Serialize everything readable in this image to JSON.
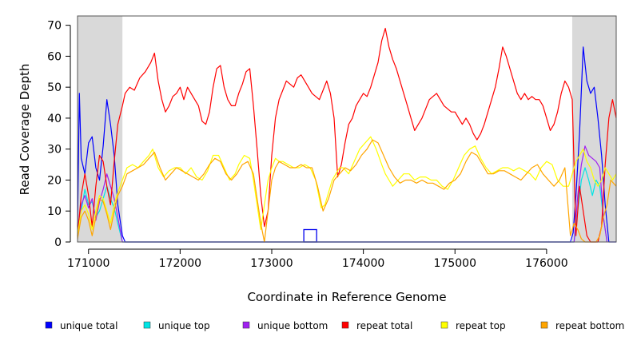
{
  "chart_data": {
    "type": "line",
    "title": "",
    "xlabel": "Coordinate in Reference Genome",
    "ylabel": "Read Coverage Depth",
    "xlim": [
      170880,
      176760
    ],
    "ylim": [
      0,
      73
    ],
    "x_ticks": [
      171000,
      172000,
      173000,
      174000,
      175000,
      176000
    ],
    "x_tick_labels": [
      "171000",
      "172000",
      "173000",
      "174000",
      "175000",
      "176000"
    ],
    "y_ticks": [
      0,
      10,
      20,
      30,
      40,
      50,
      60,
      70
    ],
    "y_tick_labels": [
      "0",
      "10",
      "20",
      "30",
      "40",
      "50",
      "60",
      "70"
    ],
    "shaded_regions": [
      {
        "x": [
          170880,
          171370
        ],
        "color": "#d9d9d9"
      },
      {
        "x": [
          176280,
          176760
        ],
        "color": "#d9d9d9"
      }
    ],
    "boxes": [
      {
        "x": [
          173350,
          173490
        ],
        "y": [
          0,
          4
        ],
        "color": "#0000ee"
      }
    ],
    "legend_position": "bottom",
    "series": [
      {
        "name": "unique total",
        "color": "#0000ff",
        "x": [
          170880,
          170900,
          170920,
          170960,
          171000,
          171040,
          171080,
          171120,
          171160,
          171200,
          171240,
          171280,
          171320,
          171370,
          171400,
          176260,
          176290,
          176320,
          176360,
          176400,
          176440,
          176480,
          176520,
          176560,
          176600,
          176640,
          176680,
          176720,
          176760
        ],
        "y": [
          5,
          48,
          27,
          22,
          32,
          34,
          24,
          20,
          31,
          46,
          38,
          28,
          12,
          2,
          0,
          0,
          3,
          15,
          35,
          63,
          52,
          48,
          50,
          40,
          28,
          12,
          0,
          0,
          0
        ]
      },
      {
        "name": "unique top",
        "color": "#00e5e5",
        "x": [
          170880,
          170920,
          170960,
          171000,
          171040,
          171080,
          171120,
          171160,
          171200,
          171240,
          171280,
          171320,
          171370,
          176300,
          176340,
          176380,
          176420,
          176460,
          176500,
          176540,
          176580,
          176620,
          176660
        ],
        "y": [
          5,
          10,
          17,
          12,
          13,
          8,
          10,
          14,
          18,
          14,
          11,
          6,
          0,
          0,
          10,
          20,
          24,
          20,
          15,
          20,
          18,
          8,
          0
        ],
        "legend_label": "unique top"
      },
      {
        "name": "unique bottom",
        "color": "#a020f0",
        "x": [
          170880,
          170920,
          170960,
          171000,
          171040,
          171080,
          171120,
          171160,
          171200,
          171240,
          171280,
          171320,
          171370,
          176300,
          176340,
          176380,
          176420,
          176460,
          176500,
          176540,
          176580,
          176620,
          176660
        ],
        "y": [
          4,
          12,
          15,
          11,
          14,
          7,
          13,
          17,
          22,
          18,
          14,
          8,
          0,
          0,
          15,
          25,
          31,
          28,
          27,
          26,
          24,
          8,
          0
        ]
      },
      {
        "name": "repeat total",
        "color": "#ff0000",
        "x": [
          170880,
          170920,
          170960,
          171000,
          171040,
          171080,
          171120,
          171160,
          171200,
          171240,
          171280,
          171320,
          171370,
          171400,
          171450,
          171500,
          171560,
          171620,
          171680,
          171720,
          171760,
          171800,
          171840,
          171880,
          171920,
          171960,
          172000,
          172040,
          172080,
          172120,
          172160,
          172200,
          172240,
          172280,
          172320,
          172360,
          172400,
          172440,
          172480,
          172520,
          172560,
          172600,
          172640,
          172680,
          172720,
          172760,
          172800,
          172840,
          172880,
          172920,
          172960,
          173000,
          173040,
          173080,
          173120,
          173160,
          173200,
          173240,
          173280,
          173320,
          173360,
          173400,
          173440,
          173480,
          173520,
          173560,
          173600,
          173640,
          173680,
          173720,
          173760,
          173800,
          173840,
          173880,
          173920,
          173960,
          174000,
          174040,
          174080,
          174120,
          174160,
          174200,
          174240,
          174280,
          174320,
          174360,
          174400,
          174440,
          174480,
          174520,
          174560,
          174600,
          174640,
          174680,
          174720,
          174760,
          174800,
          174840,
          174880,
          174920,
          174960,
          175000,
          175040,
          175080,
          175120,
          175160,
          175200,
          175240,
          175280,
          175320,
          175360,
          175400,
          175440,
          175480,
          175520,
          175560,
          175600,
          175640,
          175680,
          175720,
          175760,
          175800,
          175840,
          175880,
          175920,
          175960,
          176000,
          176040,
          176080,
          176120,
          176160,
          176200,
          176240,
          176280,
          176320,
          176360,
          176400,
          176440,
          176480,
          176520,
          176560,
          176600,
          176640,
          176680,
          176720,
          176760
        ],
        "y": [
          2,
          15,
          22,
          15,
          5,
          18,
          28,
          26,
          18,
          12,
          26,
          38,
          44,
          48,
          50,
          49,
          53,
          55,
          58,
          61,
          52,
          46,
          42,
          44,
          47,
          48,
          50,
          46,
          50,
          48,
          46,
          44,
          39,
          38,
          42,
          50,
          56,
          57,
          50,
          46,
          44,
          44,
          48,
          51,
          55,
          56,
          44,
          30,
          15,
          5,
          10,
          28,
          40,
          46,
          49,
          52,
          51,
          50,
          53,
          54,
          52,
          50,
          48,
          47,
          46,
          49,
          52,
          48,
          40,
          21,
          25,
          32,
          38,
          40,
          44,
          46,
          48,
          47,
          50,
          54,
          58,
          65,
          69,
          63,
          59,
          56,
          52,
          48,
          44,
          40,
          36,
          38,
          40,
          43,
          46,
          47,
          48,
          46,
          44,
          43,
          42,
          42,
          40,
          38,
          40,
          38,
          35,
          33,
          35,
          38,
          42,
          46,
          50,
          56,
          63,
          60,
          56,
          52,
          48,
          46,
          48,
          46,
          47,
          46,
          46,
          44,
          40,
          36,
          38,
          42,
          48,
          52,
          50,
          46,
          2,
          18,
          10,
          2,
          0,
          0,
          0,
          5,
          25,
          40,
          46,
          40
        ]
      },
      {
        "name": "repeat top",
        "color": "#ffff00",
        "x": [
          170880,
          170920,
          170960,
          171000,
          171040,
          171080,
          171120,
          171160,
          171200,
          171240,
          171280,
          171320,
          171370,
          171420,
          171480,
          171540,
          171600,
          171660,
          171700,
          171760,
          171820,
          171880,
          171940,
          172000,
          172060,
          172120,
          172180,
          172240,
          172300,
          172360,
          172420,
          172480,
          172540,
          172600,
          172640,
          172700,
          172760,
          172800,
          172840,
          172880,
          172920,
          172960,
          173000,
          173040,
          173080,
          173120,
          173180,
          173240,
          173300,
          173360,
          173420,
          173480,
          173540,
          173580,
          173620,
          173660,
          173700,
          173740,
          173780,
          173840,
          173900,
          173960,
          174020,
          174080,
          174140,
          174200,
          174240,
          174280,
          174320,
          174380,
          174440,
          174500,
          174560,
          174620,
          174680,
          174740,
          174800,
          174860,
          174920,
          174980,
          175040,
          175100,
          175160,
          175220,
          175280,
          175340,
          175400,
          175460,
          175520,
          175580,
          175640,
          175700,
          175760,
          175820,
          175880,
          175940,
          176000,
          176060,
          176120,
          176180,
          176240,
          176280,
          176320,
          176360,
          176400,
          176440,
          176480,
          176520,
          176560,
          176600,
          176640,
          176680,
          176720,
          176760
        ],
        "y": [
          2,
          10,
          12,
          9,
          4,
          10,
          15,
          14,
          10,
          6,
          12,
          16,
          20,
          24,
          25,
          24,
          26,
          28,
          30,
          24,
          21,
          23,
          24,
          24,
          22,
          24,
          21,
          20,
          23,
          28,
          28,
          24,
          20,
          22,
          25,
          28,
          27,
          20,
          12,
          4,
          12,
          20,
          24,
          27,
          26,
          26,
          25,
          24,
          24,
          25,
          24,
          20,
          11,
          12,
          16,
          20,
          22,
          24,
          24,
          22,
          26,
          30,
          32,
          34,
          30,
          25,
          22,
          20,
          18,
          20,
          22,
          22,
          20,
          21,
          21,
          20,
          20,
          18,
          17,
          20,
          24,
          28,
          30,
          31,
          27,
          24,
          22,
          23,
          24,
          24,
          23,
          24,
          23,
          22,
          20,
          24,
          26,
          25,
          20,
          18,
          18,
          22,
          26,
          28,
          30,
          26,
          24,
          20,
          18,
          20,
          24,
          22,
          20,
          22
        ]
      },
      {
        "name": "repeat bottom",
        "color": "#ffa500",
        "x": [
          170880,
          170920,
          170960,
          171000,
          171040,
          171080,
          171120,
          171160,
          171200,
          171240,
          171280,
          171320,
          171370,
          171420,
          171480,
          171540,
          171600,
          171660,
          171720,
          171780,
          171840,
          171900,
          171960,
          172020,
          172080,
          172140,
          172200,
          172260,
          172320,
          172380,
          172440,
          172500,
          172560,
          172620,
          172680,
          172740,
          172800,
          172840,
          172880,
          172920,
          172960,
          173000,
          173040,
          173080,
          173140,
          173200,
          173260,
          173320,
          173380,
          173440,
          173500,
          173560,
          173620,
          173680,
          173740,
          173800,
          173860,
          173920,
          173980,
          174040,
          174100,
          174160,
          174220,
          174280,
          174340,
          174400,
          174460,
          174520,
          174580,
          174640,
          174700,
          174760,
          174820,
          174880,
          174940,
          175000,
          175060,
          175120,
          175180,
          175240,
          175300,
          175360,
          175420,
          175480,
          175540,
          175600,
          175660,
          175720,
          175780,
          175840,
          175900,
          175960,
          176020,
          176080,
          176140,
          176200,
          176260,
          176300,
          176340,
          176380,
          176420,
          176460,
          176500,
          176540,
          176580,
          176620,
          176660,
          176700,
          176760
        ],
        "y": [
          1,
          8,
          10,
          7,
          2,
          8,
          14,
          13,
          9,
          4,
          10,
          15,
          18,
          22,
          23,
          24,
          25,
          27,
          29,
          24,
          20,
          22,
          24,
          23,
          22,
          21,
          20,
          22,
          25,
          27,
          26,
          22,
          20,
          22,
          25,
          26,
          22,
          14,
          6,
          0,
          10,
          20,
          24,
          26,
          25,
          24,
          24,
          25,
          24,
          24,
          18,
          10,
          14,
          20,
          22,
          24,
          23,
          25,
          28,
          30,
          33,
          32,
          28,
          24,
          21,
          19,
          20,
          20,
          19,
          20,
          19,
          19,
          18,
          17,
          19,
          20,
          22,
          26,
          29,
          28,
          25,
          22,
          22,
          23,
          23,
          22,
          21,
          20,
          22,
          24,
          25,
          22,
          20,
          18,
          20,
          24,
          2,
          6,
          4,
          1,
          0,
          0,
          0,
          0,
          2,
          8,
          12,
          20,
          18
        ]
      }
    ],
    "legend": [
      {
        "label": "unique total",
        "color": "#0000ff"
      },
      {
        "label": "unique top",
        "color": "#00e5e5"
      },
      {
        "label": "unique bottom",
        "color": "#a020f0"
      },
      {
        "label": "repeat total",
        "color": "#ff0000"
      },
      {
        "label": "repeat top",
        "color": "#ffff00"
      },
      {
        "label": "repeat bottom",
        "color": "#ffa500"
      }
    ]
  }
}
